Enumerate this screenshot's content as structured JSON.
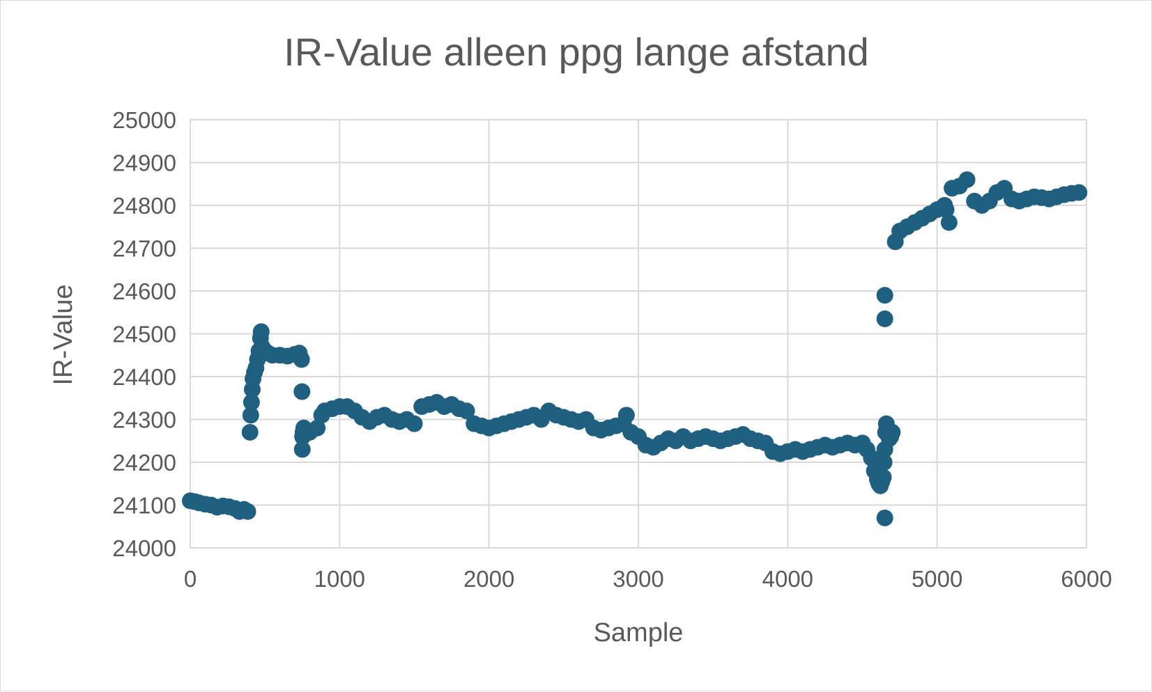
{
  "chart_data": {
    "type": "scatter",
    "title": "IR-Value alleen ppg lange afstand",
    "xlabel": "Sample",
    "ylabel": "IR-Value",
    "xlim": [
      0,
      6000
    ],
    "ylim": [
      24000,
      25000
    ],
    "xticks": [
      "0",
      "1000",
      "2000",
      "3000",
      "4000",
      "5000",
      "6000"
    ],
    "yticks": [
      "24000",
      "24100",
      "24200",
      "24300",
      "24400",
      "24500",
      "24600",
      "24700",
      "24800",
      "24900",
      "25000"
    ],
    "grid": true,
    "legend": "none",
    "marker_color": "#1f5f80",
    "series": [
      {
        "x": [
          0,
          30,
          60,
          100,
          140,
          180,
          220,
          260,
          300,
          330,
          360,
          385,
          400,
          405,
          410,
          415,
          420,
          430,
          440,
          450,
          460,
          470,
          475,
          480,
          500,
          520,
          550,
          600,
          650,
          700,
          730,
          745,
          748,
          750,
          752,
          755,
          760,
          770,
          800,
          850,
          880,
          900,
          950,
          1000,
          1050,
          1100,
          1150,
          1200,
          1250,
          1300,
          1350,
          1400,
          1450,
          1500,
          1550,
          1600,
          1650,
          1700,
          1750,
          1800,
          1850,
          1900,
          1950,
          2000,
          2050,
          2100,
          2150,
          2200,
          2250,
          2300,
          2350,
          2400,
          2450,
          2500,
          2550,
          2600,
          2650,
          2700,
          2750,
          2800,
          2850,
          2900,
          2920,
          2950,
          3000,
          3050,
          3100,
          3150,
          3200,
          3250,
          3300,
          3350,
          3400,
          3450,
          3500,
          3550,
          3600,
          3650,
          3700,
          3750,
          3800,
          3850,
          3900,
          3950,
          4000,
          4050,
          4100,
          4150,
          4200,
          4250,
          4300,
          4350,
          4400,
          4450,
          4500,
          4530,
          4560,
          4580,
          4600,
          4610,
          4620,
          4630,
          4640,
          4645,
          4650,
          4655,
          4660,
          4670,
          4680,
          4690,
          4700,
          4650,
          4650,
          4650,
          4720,
          4750,
          4800,
          4850,
          4900,
          4950,
          5000,
          5050,
          5060,
          5080,
          5100,
          5150,
          5200,
          5250,
          5300,
          5350,
          5400,
          5450,
          5500,
          5550,
          5600,
          5650,
          5700,
          5750,
          5800,
          5850,
          5900,
          5950
        ],
        "y": [
          24110,
          24108,
          24105,
          24102,
          24100,
          24095,
          24098,
          24096,
          24092,
          24085,
          24090,
          24085,
          24270,
          24310,
          24340,
          24370,
          24395,
          24410,
          24420,
          24440,
          24460,
          24490,
          24505,
          24470,
          24460,
          24455,
          24450,
          24450,
          24448,
          24452,
          24455,
          24440,
          24365,
          24230,
          24260,
          24270,
          24280,
          24275,
          24270,
          24280,
          24310,
          24320,
          24325,
          24330,
          24330,
          24320,
          24305,
          24295,
          24305,
          24310,
          24300,
          24295,
          24300,
          24290,
          24330,
          24335,
          24340,
          24330,
          24335,
          24325,
          24320,
          24290,
          24285,
          24280,
          24285,
          24290,
          24295,
          24300,
          24305,
          24310,
          24300,
          24320,
          24310,
          24305,
          24300,
          24295,
          24300,
          24280,
          24275,
          24280,
          24285,
          24290,
          24310,
          24270,
          24260,
          24240,
          24235,
          24245,
          24255,
          24250,
          24260,
          24250,
          24255,
          24260,
          24255,
          24250,
          24255,
          24260,
          24265,
          24255,
          24250,
          24245,
          24225,
          24220,
          24225,
          24230,
          24225,
          24230,
          24235,
          24240,
          24235,
          24240,
          24245,
          24240,
          24245,
          24230,
          24210,
          24180,
          24160,
          24150,
          24145,
          24155,
          24165,
          24200,
          24230,
          24270,
          24290,
          24265,
          24255,
          24260,
          24270,
          24070,
          24590,
          24535,
          24715,
          24740,
          24750,
          24760,
          24770,
          24780,
          24790,
          24800,
          24790,
          24760,
          24840,
          24845,
          24860,
          24810,
          24800,
          24810,
          24830,
          24840,
          24815,
          24810,
          24815,
          24820,
          24818,
          24815,
          24820,
          24825,
          24828,
          24830
        ]
      }
    ]
  }
}
